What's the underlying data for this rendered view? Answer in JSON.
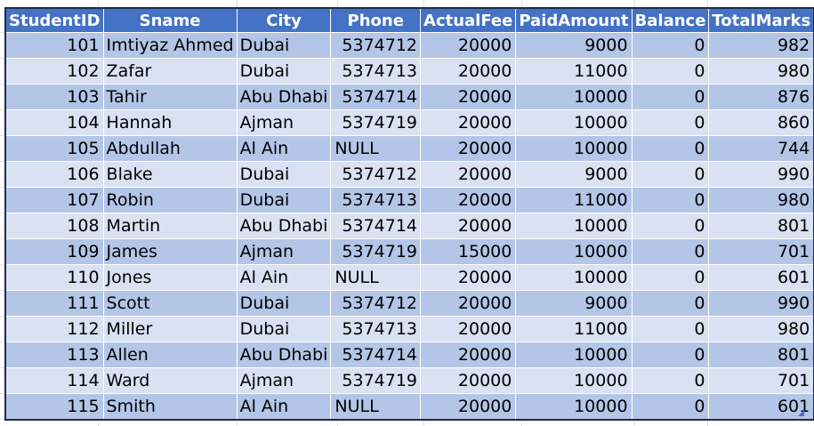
{
  "columns": [
    "StudentID",
    "Sname",
    "City",
    "Phone",
    "ActualFee",
    "PaidAmount",
    "Balance",
    "TotalMarks"
  ],
  "rows": [
    [
      "101",
      "Imtiyaz Ahmed",
      "Dubai",
      "5374712",
      "20000",
      "9000",
      "0",
      "982"
    ],
    [
      "102",
      "Zafar",
      "Dubai",
      "5374713",
      "20000",
      "11000",
      "0",
      "980"
    ],
    [
      "103",
      "Tahir",
      "Abu Dhabi",
      "5374714",
      "20000",
      "10000",
      "0",
      "876"
    ],
    [
      "104",
      "Hannah",
      "Ajman",
      "5374719",
      "20000",
      "10000",
      "0",
      "860"
    ],
    [
      "105",
      "Abdullah",
      "Al Ain",
      "NULL",
      "20000",
      "10000",
      "0",
      "744"
    ],
    [
      "106",
      "Blake",
      "Dubai",
      "5374712",
      "20000",
      "9000",
      "0",
      "990"
    ],
    [
      "107",
      "Robin",
      "Dubai",
      "5374713",
      "20000",
      "11000",
      "0",
      "980"
    ],
    [
      "108",
      "Martin",
      "Abu Dhabi",
      "5374714",
      "20000",
      "10000",
      "0",
      "801"
    ],
    [
      "109",
      "James",
      "Ajman",
      "5374719",
      "15000",
      "10000",
      "0",
      "701"
    ],
    [
      "110",
      "Jones",
      "Al Ain",
      "NULL",
      "20000",
      "10000",
      "0",
      "601"
    ],
    [
      "111",
      "Scott",
      "Dubai",
      "5374712",
      "20000",
      "9000",
      "0",
      "990"
    ],
    [
      "112",
      "Miller",
      "Dubai",
      "5374713",
      "20000",
      "11000",
      "0",
      "980"
    ],
    [
      "113",
      "Allen",
      "Abu Dhabi",
      "5374714",
      "20000",
      "10000",
      "0",
      "801"
    ],
    [
      "114",
      "Ward",
      "Ajman",
      "5374719",
      "20000",
      "10000",
      "0",
      "701"
    ],
    [
      "115",
      "Smith",
      "Al Ain",
      "NULL",
      "20000",
      "10000",
      "0",
      "601"
    ]
  ],
  "colors": {
    "header_bg": "#4472c4",
    "header_text": "#ffffff",
    "band_dark": "#b4c6e7",
    "band_light": "#d9e1f2",
    "table_border": "#1f2b4d",
    "gridline": "#e1e1e1"
  }
}
